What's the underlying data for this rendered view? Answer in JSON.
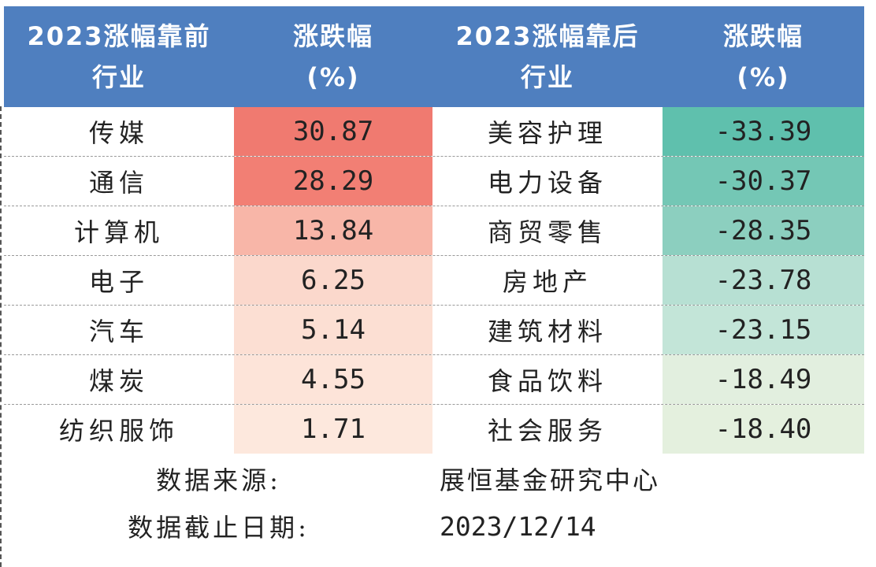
{
  "header": {
    "col1": "2023涨幅靠前\n行业",
    "col2": "涨跌幅\n(%)",
    "col3": "2023涨幅靠后\n行业",
    "col4": "涨跌幅\n(%)"
  },
  "colors": {
    "header_bg": "#4f7fbf",
    "top_gain_shades": [
      "#f07a70",
      "#f27f74",
      "#f8b6a8",
      "#fbd8cc",
      "#fcdfd3",
      "#fde4d9",
      "#fde8dd"
    ],
    "bottom_loss_shades": [
      "#5fc0ad",
      "#74c7b5",
      "#8ccfbf",
      "#b7e0d3",
      "#c3e5d8",
      "#e2efdf",
      "#e4f0de"
    ]
  },
  "rows": [
    {
      "top_industry": "传媒",
      "top_change": "30.87",
      "bottom_industry": "美容护理",
      "bottom_change": "-33.39"
    },
    {
      "top_industry": "通信",
      "top_change": "28.29",
      "bottom_industry": "电力设备",
      "bottom_change": "-30.37"
    },
    {
      "top_industry": "计算机",
      "top_change": "13.84",
      "bottom_industry": "商贸零售",
      "bottom_change": "-28.35"
    },
    {
      "top_industry": "电子",
      "top_change": "6.25",
      "bottom_industry": "房地产",
      "bottom_change": "-23.78"
    },
    {
      "top_industry": "汽车",
      "top_change": "5.14",
      "bottom_industry": "建筑材料",
      "bottom_change": "-23.15"
    },
    {
      "top_industry": "煤炭",
      "top_change": "4.55",
      "bottom_industry": "食品饮料",
      "bottom_change": "-18.49"
    },
    {
      "top_industry": "纺织服饰",
      "top_change": "1.71",
      "bottom_industry": "社会服务",
      "bottom_change": "-18.40"
    }
  ],
  "footer": {
    "source_label": "数据来源:",
    "source_value": "展恒基金研究中心",
    "date_label": "数据截止日期:",
    "date_value": "2023/12/14"
  }
}
